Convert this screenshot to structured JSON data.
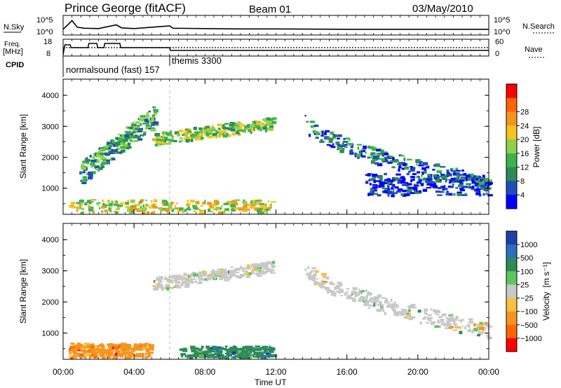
{
  "header": {
    "station": "Prince George (fitACF)",
    "beam": "Beam 01",
    "date": "03/May/2010"
  },
  "noise_panel": {
    "left_label": "N.Sky",
    "right_label": "N.Search",
    "left_ticks": [
      "10^5",
      "10^0"
    ],
    "right_ticks": [
      "10^5",
      "10^0"
    ]
  },
  "freq_panel": {
    "left_label_line1": "Freq.",
    "left_label_line2": "[MHz]",
    "left_ticks": [
      "18",
      "8"
    ],
    "right_label": "Nave",
    "right_ticks": [
      "60",
      "0"
    ]
  },
  "cpid": {
    "label": "CPID",
    "entries": [
      {
        "text": "normalsound (fast) 157",
        "start_hour": 0.2
      },
      {
        "text": "themis 3300",
        "start_hour": 6.0
      }
    ]
  },
  "x_axis": {
    "label": "Time UT",
    "ticks": [
      "00:00",
      "04:00",
      "08:00",
      "12:00",
      "16:00",
      "20:00",
      "00:00"
    ],
    "tick_hours": [
      0,
      4,
      8,
      12,
      16,
      20,
      24
    ],
    "range_hours": [
      0,
      24
    ]
  },
  "power_panel": {
    "ylabel": "Slant Range [km]",
    "yticks": [
      "1000",
      "2000",
      "3000",
      "4000"
    ],
    "colorbar_label": "Power [dB]",
    "colorbar_ticks": [
      "4",
      "8",
      "12",
      "16",
      "20",
      "24",
      "28"
    ],
    "colors": [
      "#0000ff",
      "#1f4fb4",
      "#2e8b57",
      "#3cb44b",
      "#8fd14f",
      "#f5c518",
      "#f7941d",
      "#ff6600",
      "#ff0000"
    ]
  },
  "velocity_panel": {
    "ylabel": "Slant Range [km]",
    "yticks": [
      "1000",
      "2000",
      "3000",
      "4000"
    ],
    "colorbar_label": "Velocity",
    "colorbar_unit": "[m s⁻¹]",
    "colorbar_ticks": [
      "1000",
      "500",
      "100",
      "25",
      "−25",
      "−100",
      "−500",
      "−1000"
    ],
    "colors": [
      "#1f3faa",
      "#2a6fc0",
      "#2e8b57",
      "#5ac85a",
      "#c8c8c8",
      "#f7c040",
      "#f7941d",
      "#ff6600",
      "#ff0000"
    ]
  },
  "chart_data": {
    "type": "heatmap",
    "title": "Prince George (fitACF)",
    "x_range_hours": [
      0,
      24
    ],
    "y_range_km": [
      180,
      4500
    ],
    "noise_trace": [
      [
        0.0,
        1.3
      ],
      [
        0.3,
        2.8
      ],
      [
        0.5,
        3.9
      ],
      [
        0.8,
        1.9
      ],
      [
        1.2,
        1.6
      ],
      [
        2.0,
        1.5
      ],
      [
        3.0,
        2.6
      ],
      [
        3.3,
        1.7
      ],
      [
        4.0,
        1.5
      ],
      [
        6.0,
        2.3
      ],
      [
        6.2,
        1.6
      ],
      [
        8.0,
        1.5
      ],
      [
        10.0,
        1.4
      ],
      [
        12.0,
        1.4
      ],
      [
        16.0,
        1.3
      ],
      [
        20.0,
        1.3
      ],
      [
        24.0,
        1.3
      ]
    ],
    "freq_trace_mhz": [
      [
        0.0,
        8
      ],
      [
        0.1,
        15
      ],
      [
        0.4,
        15
      ],
      [
        0.45,
        13
      ],
      [
        1.4,
        13
      ],
      [
        1.45,
        16
      ],
      [
        1.9,
        16
      ],
      [
        1.95,
        13
      ],
      [
        2.3,
        13
      ],
      [
        2.35,
        16
      ],
      [
        3.2,
        16
      ],
      [
        3.25,
        13
      ],
      [
        6.0,
        13
      ],
      [
        6.05,
        11
      ],
      [
        24.0,
        11
      ]
    ],
    "nave_trace": [
      [
        0.0,
        30
      ],
      [
        24.0,
        30
      ]
    ],
    "power_regions": [
      {
        "name": "near-range scatter",
        "t": [
          0.3,
          11.8
        ],
        "r": [
          250,
          650
        ],
        "power_db": 20
      },
      {
        "name": "upper band",
        "t": [
          5.0,
          11.8
        ],
        "r": [
          2400,
          3300
        ],
        "power_db": 16
      },
      {
        "name": "rising band",
        "t": [
          0.9,
          5.2
        ],
        "r": [
          1500,
          3400
        ],
        "power_db": 12
      },
      {
        "name": "descending band",
        "t": [
          13.6,
          24.0
        ],
        "r": [
          1000,
          3400
        ],
        "power_db": 10
      },
      {
        "name": "low band",
        "t": [
          17.0,
          24.0
        ],
        "r": [
          800,
          1500
        ],
        "power_db": 8
      }
    ],
    "velocity_regions": [
      {
        "name": "near-range scatter",
        "t": [
          0.3,
          5.0
        ],
        "r": [
          250,
          700
        ],
        "velocity_ms": -150
      },
      {
        "name": "near-range green",
        "t": [
          6.5,
          11.8
        ],
        "r": [
          250,
          600
        ],
        "velocity_ms": 80
      },
      {
        "name": "upper band",
        "t": [
          5.0,
          11.8
        ],
        "r": [
          2400,
          3300
        ],
        "velocity_ms": 0
      },
      {
        "name": "descending band",
        "t": [
          13.6,
          24.0
        ],
        "r": [
          900,
          3400
        ],
        "velocity_ms": 0
      }
    ]
  }
}
